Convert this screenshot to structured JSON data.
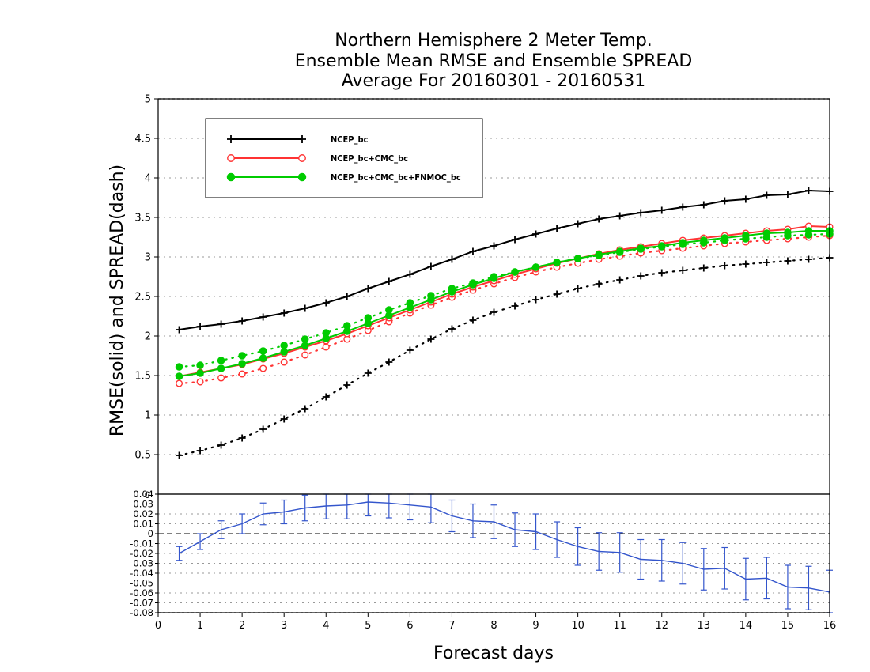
{
  "title_lines": [
    "Northern Hemisphere 2 Meter Temp.",
    "Ensemble Mean RMSE and Ensemble SPREAD",
    "Average For 20160301 - 20160531"
  ],
  "chart_data": [
    {
      "type": "line",
      "title": "Northern Hemisphere 2 Meter Temp. Ensemble Mean RMSE and Ensemble SPREAD Average For 20160301 - 20160531",
      "xlabel": "Forecast days",
      "ylabel": "RMSE(solid)  and  SPREAD(dash)",
      "xlim": [
        0,
        16
      ],
      "ylim": [
        0,
        5
      ],
      "yticks": [
        0.5,
        1,
        1.5,
        2,
        2.5,
        3,
        3.5,
        4,
        4.5,
        5
      ],
      "ytick_labels": [
        "0.5",
        "1",
        "1.5",
        "2",
        "2.5",
        "3",
        "3.5",
        "4",
        "4.5",
        "5"
      ],
      "grid": true,
      "legend_position": "top-left",
      "x": [
        0.5,
        1,
        1.5,
        2,
        2.5,
        3,
        3.5,
        4,
        4.5,
        5,
        5.5,
        6,
        6.5,
        7,
        7.5,
        8,
        8.5,
        9,
        9.5,
        10,
        10.5,
        11,
        11.5,
        12,
        12.5,
        13,
        13.5,
        14,
        14.5,
        15,
        15.5,
        16
      ],
      "series": [
        {
          "name": "NCEP_bc",
          "color": "#000000",
          "marker": "plus",
          "rmse": [
            2.08,
            2.12,
            2.15,
            2.19,
            2.24,
            2.29,
            2.35,
            2.42,
            2.5,
            2.6,
            2.69,
            2.78,
            2.88,
            2.97,
            3.07,
            3.14,
            3.22,
            3.29,
            3.36,
            3.42,
            3.48,
            3.52,
            3.56,
            3.59,
            3.63,
            3.66,
            3.71,
            3.73,
            3.78,
            3.79,
            3.84,
            3.83
          ],
          "spread": [
            0.49,
            0.55,
            0.62,
            0.71,
            0.82,
            0.95,
            1.08,
            1.23,
            1.38,
            1.53,
            1.67,
            1.82,
            1.96,
            2.09,
            2.2,
            2.3,
            2.38,
            2.46,
            2.53,
            2.6,
            2.66,
            2.71,
            2.76,
            2.8,
            2.83,
            2.86,
            2.89,
            2.91,
            2.93,
            2.95,
            2.97,
            2.99
          ]
        },
        {
          "name": "NCEP_bc+CMC_bc",
          "color": "#ff3333",
          "marker": "open-circle",
          "rmse": [
            1.49,
            1.54,
            1.59,
            1.64,
            1.71,
            1.78,
            1.86,
            1.94,
            2.03,
            2.13,
            2.23,
            2.33,
            2.43,
            2.53,
            2.62,
            2.7,
            2.78,
            2.85,
            2.92,
            2.98,
            3.04,
            3.09,
            3.13,
            3.17,
            3.21,
            3.24,
            3.27,
            3.3,
            3.33,
            3.35,
            3.39,
            3.38
          ],
          "spread": [
            1.4,
            1.42,
            1.47,
            1.52,
            1.59,
            1.67,
            1.76,
            1.86,
            1.96,
            2.07,
            2.18,
            2.29,
            2.39,
            2.49,
            2.58,
            2.66,
            2.74,
            2.81,
            2.87,
            2.92,
            2.97,
            3.01,
            3.05,
            3.08,
            3.11,
            3.14,
            3.17,
            3.19,
            3.21,
            3.23,
            3.25,
            3.27
          ]
        },
        {
          "name": "NCEP_bc+CMC_bc+FNMOC_bc",
          "color": "#00cc00",
          "marker": "filled-circle",
          "rmse": [
            1.49,
            1.53,
            1.59,
            1.65,
            1.72,
            1.8,
            1.88,
            1.97,
            2.06,
            2.16,
            2.26,
            2.36,
            2.46,
            2.56,
            2.65,
            2.73,
            2.81,
            2.87,
            2.93,
            2.98,
            3.03,
            3.07,
            3.11,
            3.14,
            3.18,
            3.21,
            3.24,
            3.27,
            3.3,
            3.31,
            3.33,
            3.33
          ],
          "spread": [
            1.61,
            1.63,
            1.69,
            1.75,
            1.81,
            1.88,
            1.96,
            2.04,
            2.13,
            2.23,
            2.33,
            2.42,
            2.51,
            2.6,
            2.67,
            2.75,
            2.81,
            2.87,
            2.93,
            2.98,
            3.02,
            3.06,
            3.1,
            3.13,
            3.16,
            3.18,
            3.21,
            3.23,
            3.25,
            3.27,
            3.28,
            3.29
          ]
        }
      ]
    },
    {
      "type": "line",
      "xlabel": "Forecast days",
      "xlim": [
        0,
        16
      ],
      "xticks": [
        0,
        1,
        2,
        3,
        4,
        5,
        6,
        7,
        8,
        9,
        10,
        11,
        12,
        13,
        14,
        15,
        16
      ],
      "xtick_labels": [
        "0",
        "1",
        "2",
        "3",
        "4",
        "5",
        "6",
        "7",
        "8",
        "9",
        "10",
        "11",
        "12",
        "13",
        "14",
        "15",
        "16"
      ],
      "ylim": [
        -0.08,
        0.04
      ],
      "yticks": [
        -0.08,
        -0.07,
        -0.06,
        -0.05,
        -0.04,
        -0.03,
        -0.02,
        -0.01,
        0,
        0.01,
        0.02,
        0.03,
        0.04
      ],
      "ytick_labels": [
        "-0.08",
        "-0.07",
        "-0.06",
        "-0.05",
        "-0.04",
        "-0.03",
        "-0.02",
        "-0.01",
        "0",
        "0.01",
        "0.02",
        "0.03",
        "0.04"
      ],
      "top_label": "0",
      "grid": true,
      "zero_line": "dashed",
      "series": [
        {
          "name": "difference",
          "color": "#3355cc",
          "x": [
            0.5,
            1,
            1.5,
            2,
            2.5,
            3,
            3.5,
            4,
            4.5,
            5,
            5.5,
            6,
            6.5,
            7,
            7.5,
            8,
            8.5,
            9,
            9.5,
            10,
            10.5,
            11,
            11.5,
            12,
            12.5,
            13,
            13.5,
            14,
            14.5,
            15,
            15.5,
            16
          ],
          "values": [
            -0.02,
            -0.008,
            0.004,
            0.01,
            0.02,
            0.022,
            0.026,
            0.028,
            0.029,
            0.032,
            0.031,
            0.029,
            0.027,
            0.018,
            0.013,
            0.012,
            0.004,
            0.002,
            -0.006,
            -0.013,
            -0.018,
            -0.019,
            -0.026,
            -0.027,
            -0.03,
            -0.036,
            -0.035,
            -0.046,
            -0.045,
            -0.054,
            -0.055,
            -0.059
          ],
          "err": [
            0.007,
            0.008,
            0.009,
            0.01,
            0.011,
            0.012,
            0.013,
            0.013,
            0.014,
            0.014,
            0.015,
            0.015,
            0.016,
            0.016,
            0.017,
            0.017,
            0.017,
            0.018,
            0.018,
            0.019,
            0.019,
            0.02,
            0.02,
            0.021,
            0.021,
            0.021,
            0.021,
            0.021,
            0.021,
            0.022,
            0.022,
            0.022
          ]
        }
      ]
    }
  ]
}
